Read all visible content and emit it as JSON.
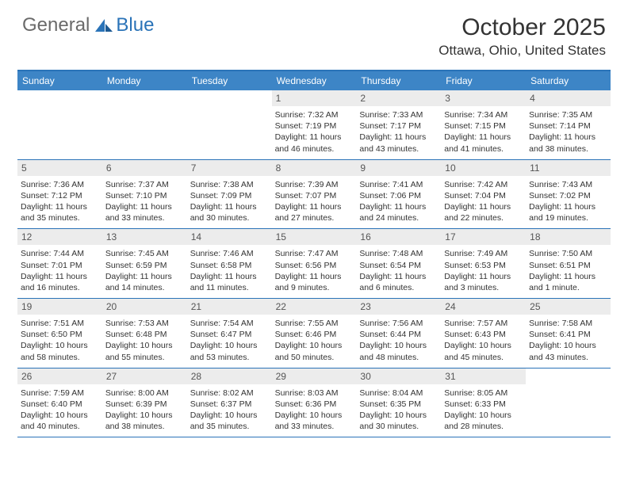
{
  "logo": {
    "general": "General",
    "blue": "Blue"
  },
  "title": "October 2025",
  "location": "Ottawa, Ohio, United States",
  "colors": {
    "header_bg": "#3d85c6",
    "border": "#2a73b8",
    "daynum_bg": "#ececec",
    "text": "#333333",
    "logo_gray": "#6a6a6a",
    "logo_blue": "#2a73b8"
  },
  "weekdays": [
    "Sunday",
    "Monday",
    "Tuesday",
    "Wednesday",
    "Thursday",
    "Friday",
    "Saturday"
  ],
  "weeks": [
    [
      {
        "n": "",
        "sr": "",
        "ss": "",
        "dl": ""
      },
      {
        "n": "",
        "sr": "",
        "ss": "",
        "dl": ""
      },
      {
        "n": "",
        "sr": "",
        "ss": "",
        "dl": ""
      },
      {
        "n": "1",
        "sr": "Sunrise: 7:32 AM",
        "ss": "Sunset: 7:19 PM",
        "dl": "Daylight: 11 hours and 46 minutes."
      },
      {
        "n": "2",
        "sr": "Sunrise: 7:33 AM",
        "ss": "Sunset: 7:17 PM",
        "dl": "Daylight: 11 hours and 43 minutes."
      },
      {
        "n": "3",
        "sr": "Sunrise: 7:34 AM",
        "ss": "Sunset: 7:15 PM",
        "dl": "Daylight: 11 hours and 41 minutes."
      },
      {
        "n": "4",
        "sr": "Sunrise: 7:35 AM",
        "ss": "Sunset: 7:14 PM",
        "dl": "Daylight: 11 hours and 38 minutes."
      }
    ],
    [
      {
        "n": "5",
        "sr": "Sunrise: 7:36 AM",
        "ss": "Sunset: 7:12 PM",
        "dl": "Daylight: 11 hours and 35 minutes."
      },
      {
        "n": "6",
        "sr": "Sunrise: 7:37 AM",
        "ss": "Sunset: 7:10 PM",
        "dl": "Daylight: 11 hours and 33 minutes."
      },
      {
        "n": "7",
        "sr": "Sunrise: 7:38 AM",
        "ss": "Sunset: 7:09 PM",
        "dl": "Daylight: 11 hours and 30 minutes."
      },
      {
        "n": "8",
        "sr": "Sunrise: 7:39 AM",
        "ss": "Sunset: 7:07 PM",
        "dl": "Daylight: 11 hours and 27 minutes."
      },
      {
        "n": "9",
        "sr": "Sunrise: 7:41 AM",
        "ss": "Sunset: 7:06 PM",
        "dl": "Daylight: 11 hours and 24 minutes."
      },
      {
        "n": "10",
        "sr": "Sunrise: 7:42 AM",
        "ss": "Sunset: 7:04 PM",
        "dl": "Daylight: 11 hours and 22 minutes."
      },
      {
        "n": "11",
        "sr": "Sunrise: 7:43 AM",
        "ss": "Sunset: 7:02 PM",
        "dl": "Daylight: 11 hours and 19 minutes."
      }
    ],
    [
      {
        "n": "12",
        "sr": "Sunrise: 7:44 AM",
        "ss": "Sunset: 7:01 PM",
        "dl": "Daylight: 11 hours and 16 minutes."
      },
      {
        "n": "13",
        "sr": "Sunrise: 7:45 AM",
        "ss": "Sunset: 6:59 PM",
        "dl": "Daylight: 11 hours and 14 minutes."
      },
      {
        "n": "14",
        "sr": "Sunrise: 7:46 AM",
        "ss": "Sunset: 6:58 PM",
        "dl": "Daylight: 11 hours and 11 minutes."
      },
      {
        "n": "15",
        "sr": "Sunrise: 7:47 AM",
        "ss": "Sunset: 6:56 PM",
        "dl": "Daylight: 11 hours and 9 minutes."
      },
      {
        "n": "16",
        "sr": "Sunrise: 7:48 AM",
        "ss": "Sunset: 6:54 PM",
        "dl": "Daylight: 11 hours and 6 minutes."
      },
      {
        "n": "17",
        "sr": "Sunrise: 7:49 AM",
        "ss": "Sunset: 6:53 PM",
        "dl": "Daylight: 11 hours and 3 minutes."
      },
      {
        "n": "18",
        "sr": "Sunrise: 7:50 AM",
        "ss": "Sunset: 6:51 PM",
        "dl": "Daylight: 11 hours and 1 minute."
      }
    ],
    [
      {
        "n": "19",
        "sr": "Sunrise: 7:51 AM",
        "ss": "Sunset: 6:50 PM",
        "dl": "Daylight: 10 hours and 58 minutes."
      },
      {
        "n": "20",
        "sr": "Sunrise: 7:53 AM",
        "ss": "Sunset: 6:48 PM",
        "dl": "Daylight: 10 hours and 55 minutes."
      },
      {
        "n": "21",
        "sr": "Sunrise: 7:54 AM",
        "ss": "Sunset: 6:47 PM",
        "dl": "Daylight: 10 hours and 53 minutes."
      },
      {
        "n": "22",
        "sr": "Sunrise: 7:55 AM",
        "ss": "Sunset: 6:46 PM",
        "dl": "Daylight: 10 hours and 50 minutes."
      },
      {
        "n": "23",
        "sr": "Sunrise: 7:56 AM",
        "ss": "Sunset: 6:44 PM",
        "dl": "Daylight: 10 hours and 48 minutes."
      },
      {
        "n": "24",
        "sr": "Sunrise: 7:57 AM",
        "ss": "Sunset: 6:43 PM",
        "dl": "Daylight: 10 hours and 45 minutes."
      },
      {
        "n": "25",
        "sr": "Sunrise: 7:58 AM",
        "ss": "Sunset: 6:41 PM",
        "dl": "Daylight: 10 hours and 43 minutes."
      }
    ],
    [
      {
        "n": "26",
        "sr": "Sunrise: 7:59 AM",
        "ss": "Sunset: 6:40 PM",
        "dl": "Daylight: 10 hours and 40 minutes."
      },
      {
        "n": "27",
        "sr": "Sunrise: 8:00 AM",
        "ss": "Sunset: 6:39 PM",
        "dl": "Daylight: 10 hours and 38 minutes."
      },
      {
        "n": "28",
        "sr": "Sunrise: 8:02 AM",
        "ss": "Sunset: 6:37 PM",
        "dl": "Daylight: 10 hours and 35 minutes."
      },
      {
        "n": "29",
        "sr": "Sunrise: 8:03 AM",
        "ss": "Sunset: 6:36 PM",
        "dl": "Daylight: 10 hours and 33 minutes."
      },
      {
        "n": "30",
        "sr": "Sunrise: 8:04 AM",
        "ss": "Sunset: 6:35 PM",
        "dl": "Daylight: 10 hours and 30 minutes."
      },
      {
        "n": "31",
        "sr": "Sunrise: 8:05 AM",
        "ss": "Sunset: 6:33 PM",
        "dl": "Daylight: 10 hours and 28 minutes."
      },
      {
        "n": "",
        "sr": "",
        "ss": "",
        "dl": ""
      }
    ]
  ]
}
